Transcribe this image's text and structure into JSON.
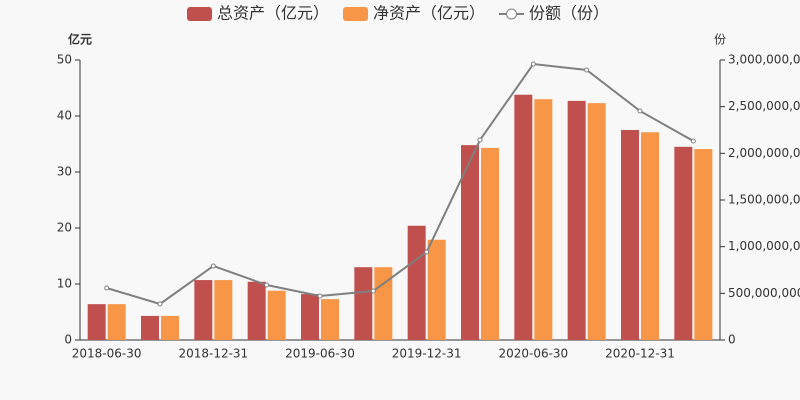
{
  "chart_data": {
    "type": "bar",
    "categories": [
      "2018-06-30",
      null,
      "2018-12-31",
      null,
      "2019-06-30",
      null,
      "2019-12-31",
      null,
      "2020-06-30",
      null,
      "2020-12-31",
      null
    ],
    "y_unit": "亿元",
    "y2_unit": "份",
    "series": [
      {
        "name": "总资产（亿元）",
        "color": "#c0504d",
        "values": [
          6.4,
          4.3,
          10.7,
          10.4,
          8.2,
          13.0,
          20.4,
          34.8,
          43.8,
          42.7,
          37.5,
          34.5
        ]
      },
      {
        "name": "净资产（亿元）",
        "color": "#f79646",
        "values": [
          6.4,
          4.3,
          10.7,
          8.8,
          7.3,
          13.0,
          17.9,
          34.3,
          43.0,
          42.3,
          37.1,
          34.1
        ]
      },
      {
        "name": "份额（份）",
        "color": "#7f7f7f",
        "type": "line",
        "axis": "y2",
        "values": [
          557000000,
          386000000,
          793000000,
          589000000,
          471000000,
          525000000,
          943000000,
          2143000000,
          2957000000,
          2893000000,
          2454000000,
          2132000000
        ]
      }
    ],
    "ylim": [
      0,
      50
    ],
    "yticks": [
      0,
      10,
      20,
      30,
      40,
      50
    ],
    "y2lim": [
      0,
      3000000000
    ],
    "y2ticks": [
      0,
      {
        "value": 500000000,
        "label": "500,000,000"
      },
      {
        "value": 1000000000,
        "label": "1,000,000,000"
      },
      {
        "value": 1500000000,
        "label": "1,500,000,000"
      },
      {
        "value": 2000000000,
        "label": "2,000,000,000"
      },
      {
        "value": 2500000000,
        "label": "2,500,000,000"
      },
      {
        "value": 3000000000,
        "label": "3,000,000,000"
      }
    ],
    "grid": false
  }
}
